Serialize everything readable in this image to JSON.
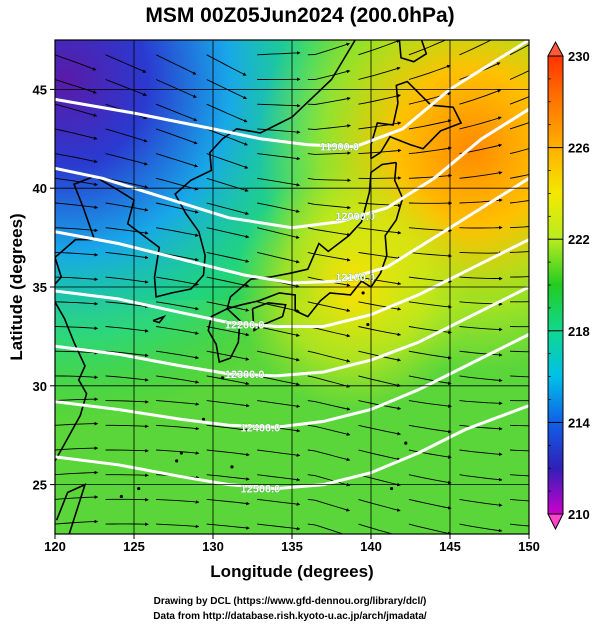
{
  "title": "MSM 00Z05Jun2024 (200.0hPa)",
  "x_axis": {
    "label": "Longitude (degrees)",
    "ticks": [
      "120",
      "125",
      "130",
      "135",
      "140",
      "145",
      "150"
    ]
  },
  "y_axis": {
    "label": "Latitude  (degrees)",
    "ticks": [
      "25",
      "30",
      "35",
      "40",
      "45"
    ]
  },
  "colorbar": {
    "ticks": [
      "230",
      "226",
      "222",
      "218",
      "214",
      "210"
    ],
    "min": 210,
    "max": 230
  },
  "contours": [
    {
      "value": 11900.0,
      "label": "11900.0"
    },
    {
      "value": 12000.0,
      "label": "12000.0"
    },
    {
      "value": 12100.0,
      "label": "12100.0"
    },
    {
      "value": 12200.0,
      "label": "12200.0"
    },
    {
      "value": 12300.0,
      "label": "12300.0"
    },
    {
      "value": 12400.0,
      "label": "12400.0"
    },
    {
      "value": 12500.0,
      "label": "12500.0"
    }
  ],
  "credits": {
    "line1": "Drawing by DCL (https://www.gfd-dennou.org/library/dcl/)",
    "line2": "Data from http://database.rish.kyoto-u.ac.jp/arch/jmadata/"
  },
  "map": {
    "lon_range": [
      120,
      150
    ],
    "lat_range": [
      22.5,
      47.5
    ],
    "field": "temperature (K)",
    "shaded_range": [
      210,
      230
    ],
    "vectors": "streamlines (wind)"
  }
}
